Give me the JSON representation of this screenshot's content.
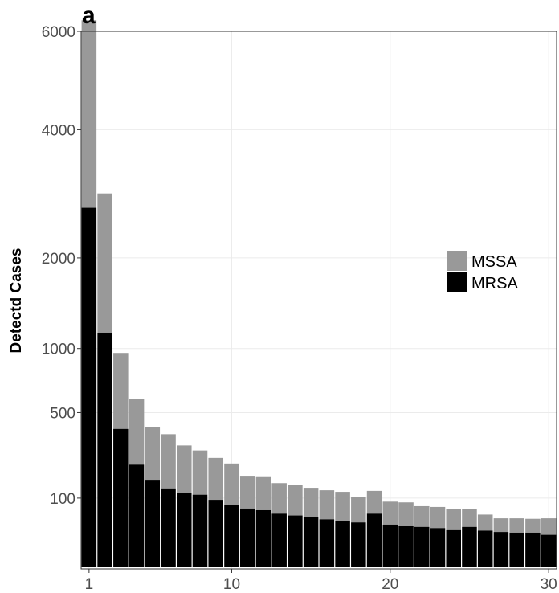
{
  "panel_label": "a",
  "chart_data": {
    "type": "bar",
    "stacked": true,
    "ylabel": "Detectd Cases",
    "xlabel": "",
    "x": [
      1,
      2,
      3,
      4,
      5,
      6,
      7,
      8,
      9,
      10,
      11,
      12,
      13,
      14,
      15,
      16,
      17,
      18,
      19,
      20,
      21,
      22,
      23,
      24,
      25,
      26,
      27,
      28,
      29,
      30
    ],
    "xticks": [
      1,
      10,
      20,
      30
    ],
    "xlim": [
      0.5,
      30.5
    ],
    "yscale": "sqrt",
    "yticks": [
      100,
      500,
      1000,
      2000,
      4000,
      6000
    ],
    "ylim": [
      0,
      6000
    ],
    "grid": true,
    "legend_position": "right",
    "series": [
      {
        "name": "MRSA",
        "color": "#000000",
        "values": [
          2700,
          1150,
          400,
          220,
          160,
          130,
          115,
          110,
          95,
          80,
          72,
          68,
          60,
          56,
          52,
          48,
          45,
          42,
          60,
          38,
          36,
          34,
          32,
          30,
          34,
          28,
          26,
          25,
          25,
          22
        ]
      },
      {
        "name": "MSSA",
        "color": "#999999",
        "values": [
          3550,
          1770,
          560,
          370,
          250,
          240,
          195,
          175,
          155,
          145,
          100,
          102,
          88,
          85,
          80,
          76,
          74,
          62,
          62,
          52,
          52,
          44,
          44,
          40,
          36,
          30,
          24,
          25,
          24,
          28
        ]
      }
    ]
  }
}
